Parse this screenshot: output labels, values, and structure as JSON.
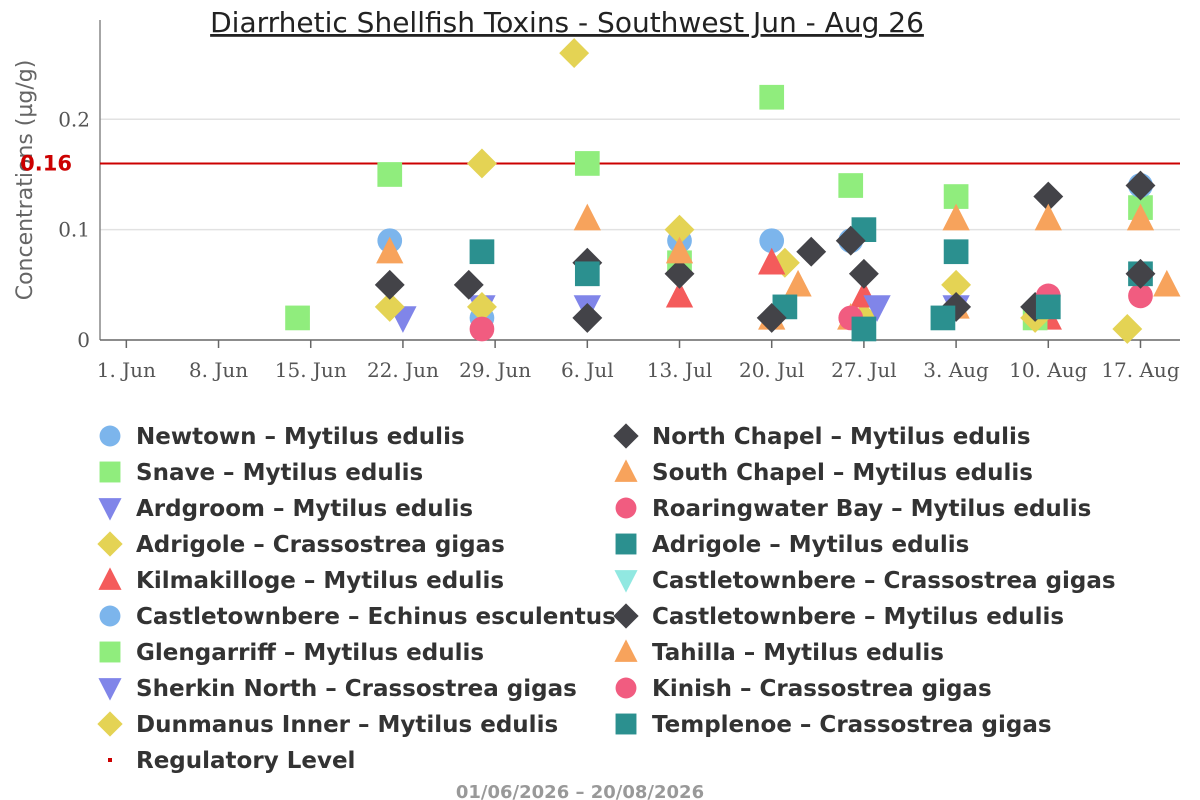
{
  "chart_data": {
    "type": "scatter",
    "title": "Diarrhetic Shellfish Toxins - Southwest Jun - Aug 26",
    "ylabel": "Concentrations (µg/g)",
    "xlabel": "",
    "x_ticks": [
      "1. Jun",
      "8. Jun",
      "15. Jun",
      "22. Jun",
      "29. Jun",
      "6. Jul",
      "13. Jul",
      "20. Jul",
      "27. Jul",
      "3. Aug",
      "10. Aug",
      "17. Aug"
    ],
    "y_ticks": [
      "0",
      "0.1",
      "0.2"
    ],
    "x_range": [
      "2026-05-30",
      "2026-08-20"
    ],
    "ylim": [
      0,
      0.29
    ],
    "grid": true,
    "legend_position": "bottom",
    "date_range_label": "01/06/2026 – 20/08/2026",
    "regulatory_level": {
      "name": "Regulatory Level",
      "value": 0.16,
      "label": "0.16",
      "color": "#cc0000"
    },
    "series": [
      {
        "name": "Newtown – Mytilus edulis",
        "marker": "circle",
        "color": "#7cb5ec",
        "points": [
          [
            "2026-06-21",
            0.09
          ],
          [
            "2026-06-28",
            0.02
          ],
          [
            "2026-07-13",
            0.09
          ],
          [
            "2026-07-20",
            0.09
          ],
          [
            "2026-07-26",
            0.09
          ],
          [
            "2026-08-17",
            0.14
          ]
        ]
      },
      {
        "name": "Snave – Mytilus edulis",
        "marker": "square",
        "color": "#90ed7d",
        "points": [
          [
            "2026-06-14",
            0.02
          ],
          [
            "2026-06-21",
            0.15
          ],
          [
            "2026-07-06",
            0.16
          ],
          [
            "2026-07-13",
            0.07
          ],
          [
            "2026-07-20",
            0.22
          ],
          [
            "2026-07-26",
            0.14
          ],
          [
            "2026-08-03",
            0.13
          ],
          [
            "2026-08-17",
            0.12
          ]
        ]
      },
      {
        "name": "Ardgroom – Mytilus edulis",
        "marker": "triangle-down",
        "color": "#8085e9",
        "points": [
          [
            "2026-06-22",
            0.02
          ],
          [
            "2026-06-28",
            0.03
          ],
          [
            "2026-07-06",
            0.03
          ]
        ]
      },
      {
        "name": "Adrigole – Crassostrea gigas",
        "marker": "diamond",
        "color": "#e4d354",
        "points": [
          [
            "2026-06-21",
            0.03
          ],
          [
            "2026-06-28",
            0.16
          ],
          [
            "2026-06-28",
            0.03
          ],
          [
            "2026-07-05",
            0.26
          ],
          [
            "2026-07-13",
            0.1
          ],
          [
            "2026-07-21",
            0.07
          ],
          [
            "2026-07-27",
            0.02
          ],
          [
            "2026-08-03",
            0.05
          ],
          [
            "2026-08-16",
            0.01
          ]
        ]
      },
      {
        "name": "Kilmakilloge – Mytilus edulis",
        "marker": "triangle",
        "color": "#f45b5b",
        "points": [
          [
            "2026-07-13",
            0.04
          ],
          [
            "2026-07-20",
            0.07
          ],
          [
            "2026-07-27",
            0.04
          ],
          [
            "2026-08-10",
            0.02
          ]
        ]
      },
      {
        "name": "Castletownbere – Echinus esculentus",
        "marker": "circle",
        "color": "#7cb5ec",
        "points": [
          [
            "2026-08-17",
            0.14
          ]
        ]
      },
      {
        "name": "Glengarriff – Mytilus edulis",
        "marker": "square",
        "color": "#90ed7d",
        "points": [
          [
            "2026-08-09",
            0.02
          ]
        ]
      },
      {
        "name": "Sherkin North – Crassostrea gigas",
        "marker": "triangle-down",
        "color": "#8085e9",
        "points": [
          [
            "2026-07-28",
            0.03
          ],
          [
            "2026-08-03",
            0.03
          ]
        ]
      },
      {
        "name": "Dunmanus Inner – Mytilus edulis",
        "marker": "diamond",
        "color": "#e4d354",
        "points": [
          [
            "2026-08-09",
            0.02
          ]
        ]
      },
      {
        "name": "Regulatory Level",
        "marker": "line",
        "color": "#cc0000",
        "points": []
      },
      {
        "name": "North Chapel – Mytilus edulis",
        "marker": "diamond",
        "color": "#434348",
        "points": [
          [
            "2026-06-21",
            0.05
          ],
          [
            "2026-06-27",
            0.05
          ],
          [
            "2026-07-06",
            0.07
          ],
          [
            "2026-07-06",
            0.02
          ],
          [
            "2026-07-13",
            0.06
          ],
          [
            "2026-07-23",
            0.08
          ],
          [
            "2026-07-27",
            0.06
          ],
          [
            "2026-08-10",
            0.13
          ]
        ]
      },
      {
        "name": "South Chapel – Mytilus edulis",
        "marker": "triangle",
        "color": "#f7a35c",
        "points": [
          [
            "2026-06-21",
            0.08
          ],
          [
            "2026-07-06",
            0.11
          ],
          [
            "2026-07-13",
            0.08
          ],
          [
            "2026-07-20",
            0.02
          ],
          [
            "2026-07-22",
            0.05
          ],
          [
            "2026-07-26",
            0.02
          ],
          [
            "2026-08-03",
            0.11
          ],
          [
            "2026-08-03",
            0.03
          ],
          [
            "2026-08-10",
            0.11
          ],
          [
            "2026-08-17",
            0.11
          ],
          [
            "2026-08-19",
            0.05
          ]
        ]
      },
      {
        "name": "Roaringwater Bay – Mytilus edulis",
        "marker": "circle",
        "color": "#f15c80",
        "points": [
          [
            "2026-06-28",
            0.01
          ],
          [
            "2026-07-26",
            0.02
          ],
          [
            "2026-08-17",
            0.04
          ]
        ]
      },
      {
        "name": "Adrigole – Mytilus edulis",
        "marker": "square",
        "color": "#2b908f",
        "points": [
          [
            "2026-06-28",
            0.08
          ],
          [
            "2026-07-06",
            0.06
          ],
          [
            "2026-07-21",
            0.03
          ],
          [
            "2026-07-27",
            0.1
          ],
          [
            "2026-08-03",
            0.08
          ],
          [
            "2026-08-17",
            0.06
          ]
        ]
      },
      {
        "name": "Castletownbere – Crassostrea gigas",
        "marker": "triangle-down",
        "color": "#91e8e1",
        "points": []
      },
      {
        "name": "Castletownbere – Mytilus edulis",
        "marker": "diamond",
        "color": "#434348",
        "points": [
          [
            "2026-07-20",
            0.02
          ],
          [
            "2026-07-26",
            0.09
          ],
          [
            "2026-08-03",
            0.03
          ],
          [
            "2026-08-09",
            0.03
          ],
          [
            "2026-08-17",
            0.06
          ],
          [
            "2026-08-17",
            0.14
          ]
        ]
      },
      {
        "name": "Tahilla – Mytilus edulis",
        "marker": "triangle",
        "color": "#f7a35c",
        "points": []
      },
      {
        "name": "Kinish – Crassostrea gigas",
        "marker": "circle",
        "color": "#f15c80",
        "points": [
          [
            "2026-08-10",
            0.04
          ]
        ]
      },
      {
        "name": "Templenoe – Crassostrea gigas",
        "marker": "square",
        "color": "#2b908f",
        "points": [
          [
            "2026-07-27",
            0.01
          ],
          [
            "2026-08-02",
            0.02
          ],
          [
            "2026-08-10",
            0.03
          ]
        ]
      }
    ]
  }
}
